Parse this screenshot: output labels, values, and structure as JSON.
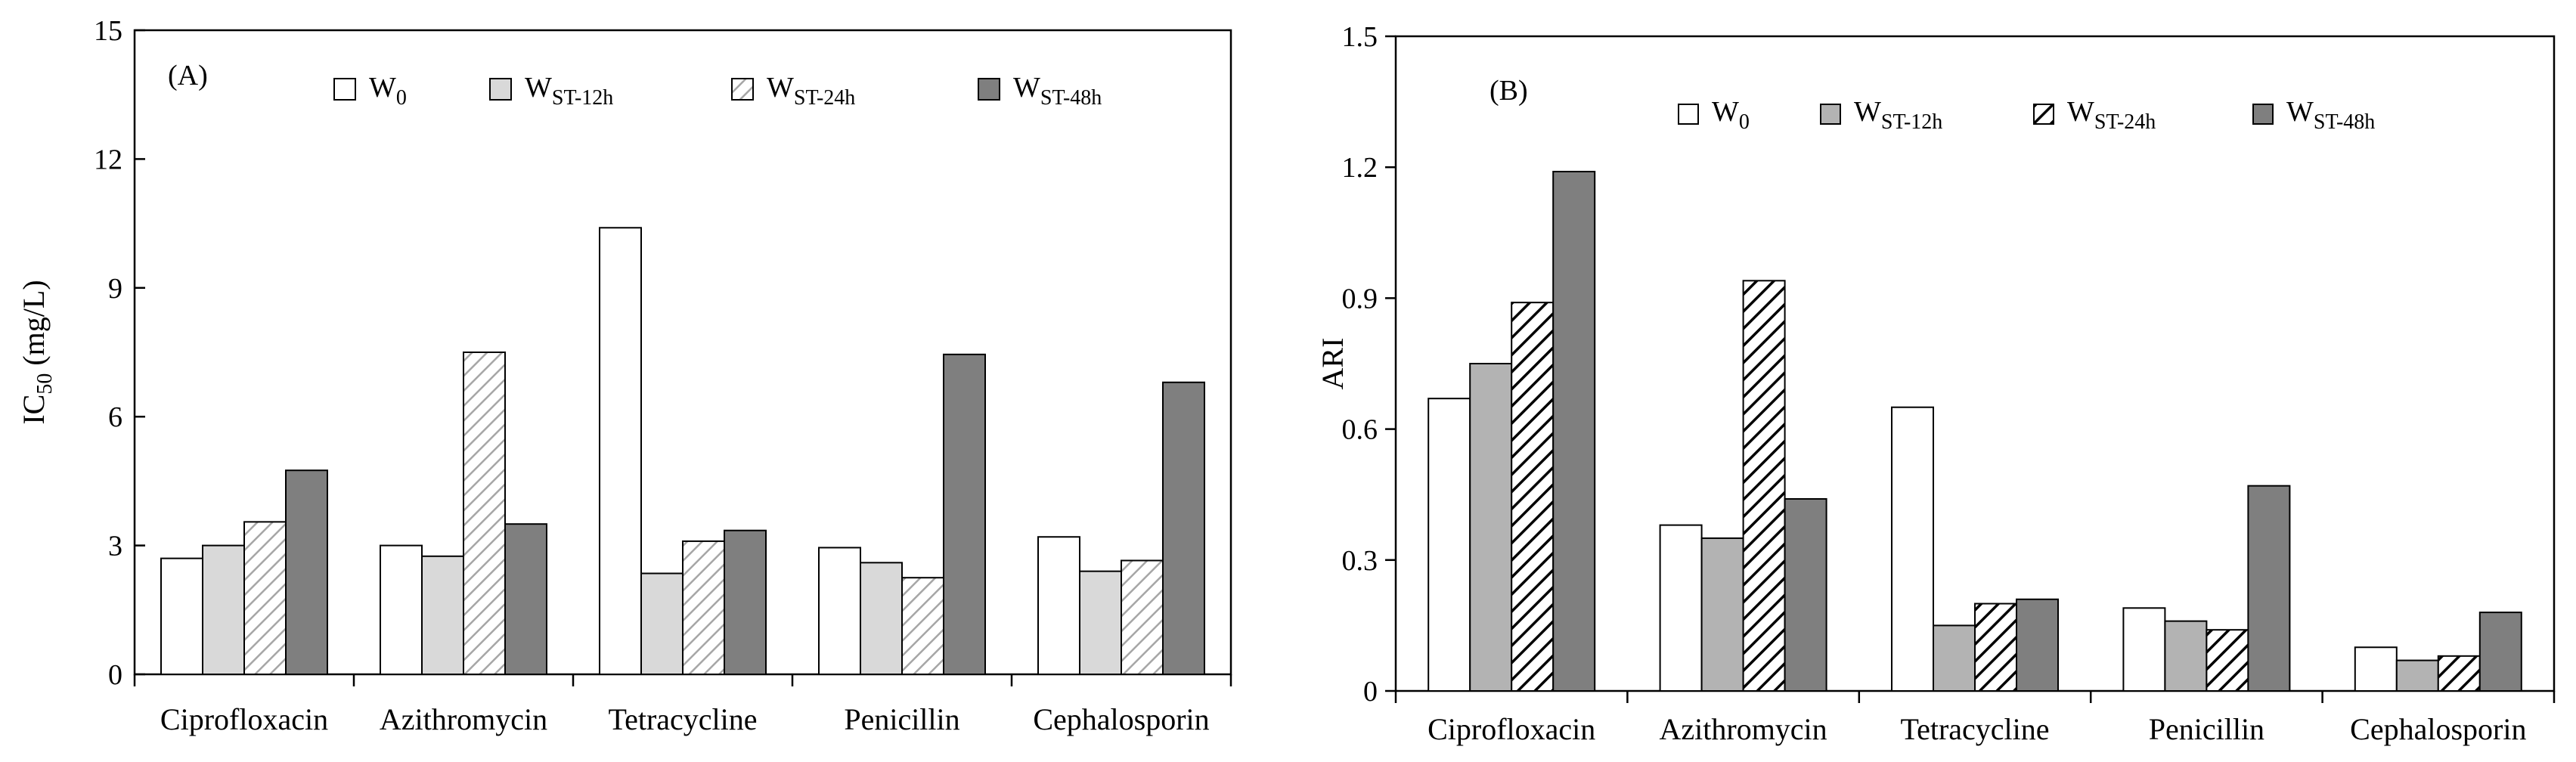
{
  "charts": [
    {
      "panel_label": "(A)",
      "type": "bar",
      "ylabel_main": "IC",
      "ylabel_sub": "50",
      "ylabel_tail": " (mg/L)",
      "ylim": [
        0,
        15
      ],
      "yticks": [
        0,
        3,
        6,
        9,
        12,
        15
      ],
      "ytick_labels": [
        "0",
        "3",
        "6",
        "9",
        "12",
        "15"
      ],
      "categories": [
        "Ciprofloxacin",
        "Azithromycin",
        "Tetracycline",
        "Penicillin",
        "Cephalosporin"
      ],
      "series": [
        {
          "name": "W0",
          "label_main": "W",
          "label_sub": "0",
          "fill": "white",
          "values": [
            2.7,
            3.0,
            10.4,
            2.95,
            3.2
          ]
        },
        {
          "name": "WST-12h",
          "label_main": "W",
          "label_sub": "ST-12h",
          "fill": "light",
          "values": [
            3.0,
            2.75,
            2.35,
            2.6,
            2.4
          ]
        },
        {
          "name": "WST-24h",
          "label_main": "W",
          "label_sub": "ST-24h",
          "fill": "light-hatch",
          "values": [
            3.55,
            7.5,
            3.1,
            2.25,
            2.65
          ]
        },
        {
          "name": "WST-48h",
          "label_main": "W",
          "label_sub": "ST-48h",
          "fill": "dark",
          "values": [
            4.75,
            3.5,
            3.35,
            7.45,
            6.8
          ]
        }
      ]
    },
    {
      "panel_label": "(B)",
      "type": "bar",
      "ylabel_main": "ARI",
      "ylabel_sub": "",
      "ylabel_tail": "",
      "ylim": [
        0,
        1.5
      ],
      "yticks": [
        0,
        0.3,
        0.6,
        0.9,
        1.2,
        1.5
      ],
      "ytick_labels": [
        "0",
        "0.3",
        "0.6",
        "0.9",
        "1.2",
        "1.5"
      ],
      "categories": [
        "Ciprofloxacin",
        "Azithromycin",
        "Tetracycline",
        "Penicillin",
        "Cephalosporin"
      ],
      "series": [
        {
          "name": "W0",
          "label_main": "W",
          "label_sub": "0",
          "fill": "white",
          "values": [
            0.67,
            0.38,
            0.65,
            0.19,
            0.1
          ]
        },
        {
          "name": "WST-12h",
          "label_main": "W",
          "label_sub": "ST-12h",
          "fill": "mid",
          "values": [
            0.75,
            0.35,
            0.15,
            0.16,
            0.07
          ]
        },
        {
          "name": "WST-24h",
          "label_main": "W",
          "label_sub": "ST-24h",
          "fill": "dark-hatch",
          "values": [
            0.89,
            0.94,
            0.2,
            0.14,
            0.08
          ]
        },
        {
          "name": "WST-48h",
          "label_main": "W",
          "label_sub": "ST-48h",
          "fill": "dark",
          "values": [
            1.19,
            0.44,
            0.21,
            0.47,
            0.18
          ]
        }
      ]
    }
  ],
  "colors": {
    "white": "#ffffff",
    "light": "#d9d9d9",
    "light-hatch-bg": "#ffffff",
    "light-hatch-line": "#a6a6a6",
    "mid": "#b3b3b3",
    "dark-hatch-bg": "#ffffff",
    "dark-hatch-line": "#000000",
    "dark": "#7f7f7f",
    "stroke": "#000000"
  }
}
